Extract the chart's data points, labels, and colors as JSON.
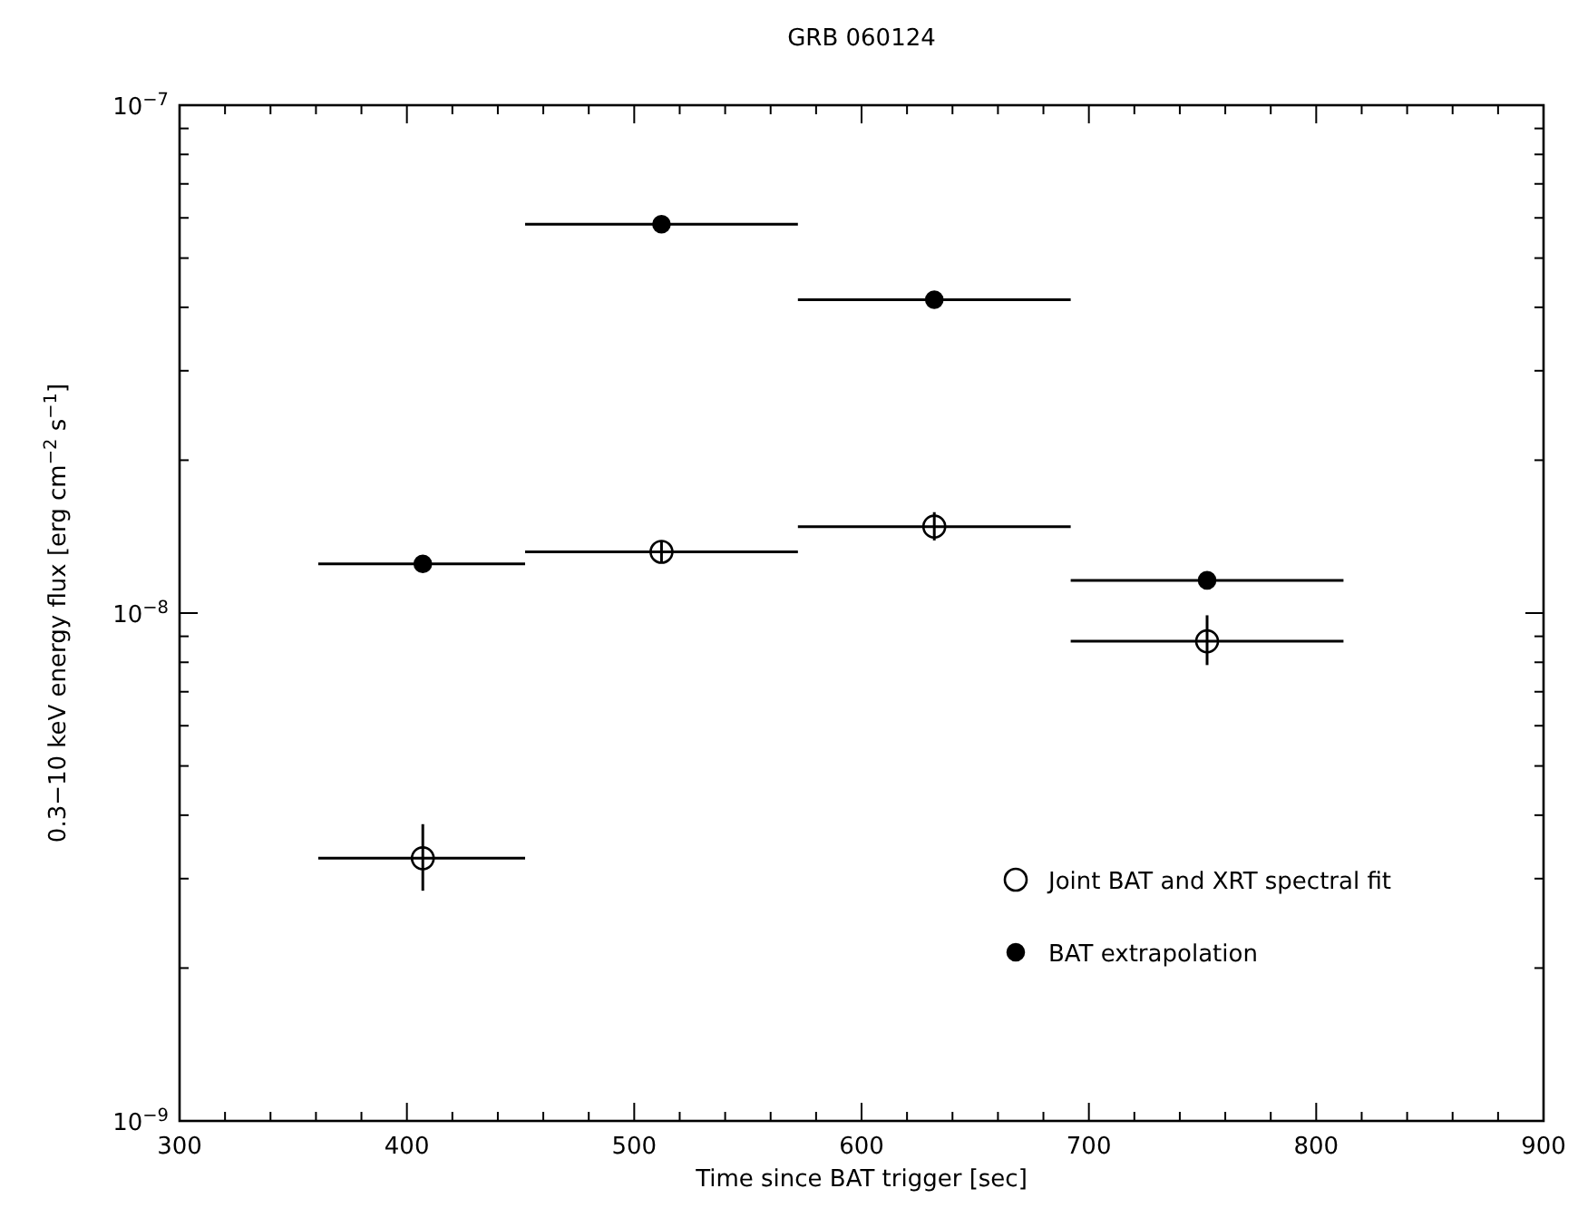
{
  "chart_data": {
    "type": "scatter",
    "title": "GRB 060124",
    "xlabel": "Time since BAT trigger [sec]",
    "ylabel": "0.3−10 keV energy flux [erg cm$^{−2}$ s$^{−1}$]",
    "x": [
      407,
      512,
      632,
      752
    ],
    "series": [
      {
        "name": "Joint BAT and XRT spectral fit",
        "color": "#000000",
        "values": [
          3.29e-09,
          1.32e-08,
          1.48e-08,
          8.8e-09
        ],
        "errors": [
          [
            2.84e-09,
            3.84e-09
          ],
          [
            1.26e-08,
            1.39e-08
          ],
          [
            1.39e-08,
            1.58e-08
          ],
          [
            7.9e-09,
            9.9e-09
          ]
        ],
        "xerrors": [
          [
            361,
            452
          ],
          [
            452,
            572
          ],
          [
            572,
            692
          ],
          [
            692,
            812
          ]
        ]
      },
      {
        "name": "BAT extrapolation",
        "color": "#000000",
        "values": [
          1.25e-08,
          5.83e-08,
          4.14e-08,
          1.16e-08
        ],
        "xerrors": [
          [
            361,
            452
          ],
          [
            452,
            572
          ],
          [
            572,
            692
          ],
          [
            692,
            812
          ]
        ]
      }
    ],
    "xlim": [
      300,
      900
    ],
    "ylim": [
      1e-09,
      1e-07
    ],
    "log": "y",
    "xticks": [
      300,
      {
        "value": 320,
        "label": null
      },
      {
        "value": 340,
        "label": null
      },
      {
        "value": 360,
        "label": null
      },
      {
        "value": 380,
        "label": null
      },
      400,
      {
        "value": 420,
        "label": null
      },
      {
        "value": 440,
        "label": null
      },
      {
        "value": 460,
        "label": null
      },
      {
        "value": 480,
        "label": null
      },
      500,
      {
        "value": 520,
        "label": null
      },
      {
        "value": 540,
        "label": null
      },
      {
        "value": 560,
        "label": null
      },
      {
        "value": 580,
        "label": null
      },
      600,
      {
        "value": 620,
        "label": null
      },
      {
        "value": 640,
        "label": null
      },
      {
        "value": 660,
        "label": null
      },
      {
        "value": 680,
        "label": null
      },
      700,
      {
        "value": 720,
        "label": null
      },
      {
        "value": 740,
        "label": null
      },
      {
        "value": 760,
        "label": null
      },
      {
        "value": 780,
        "label": null
      },
      800,
      {
        "value": 820,
        "label": null
      },
      {
        "value": 840,
        "label": null
      },
      {
        "value": 860,
        "label": null
      },
      {
        "value": 880,
        "label": null
      },
      900
    ],
    "yticks": [
      {
        "value": 1e-09,
        "label": "10$^{−9}$"
      },
      {
        "value": 2e-09,
        "label": null
      },
      {
        "value": 3e-09,
        "label": null
      },
      {
        "value": 4e-09,
        "label": null
      },
      {
        "value": 5e-09,
        "label": null
      },
      {
        "value": 6e-09,
        "label": null
      },
      {
        "value": 7e-09,
        "label": null
      },
      {
        "value": 8e-09,
        "label": null
      },
      {
        "value": 9e-09,
        "label": null
      },
      {
        "value": 1e-08,
        "label": "10$^{−8}$"
      },
      {
        "value": 2e-08,
        "label": null
      },
      {
        "value": 3e-08,
        "label": null
      },
      {
        "value": 4e-08,
        "label": null
      },
      {
        "value": 5e-08,
        "label": null
      },
      {
        "value": 6e-08,
        "label": null
      },
      {
        "value": 7e-08,
        "label": null
      },
      {
        "value": 8e-08,
        "label": null
      },
      {
        "value": 9e-08,
        "label": null
      },
      {
        "value": 1e-07,
        "label": "10$^{−7}$"
      }
    ],
    "grid": false,
    "legend": "bottom right",
    "marker": "circle"
  }
}
